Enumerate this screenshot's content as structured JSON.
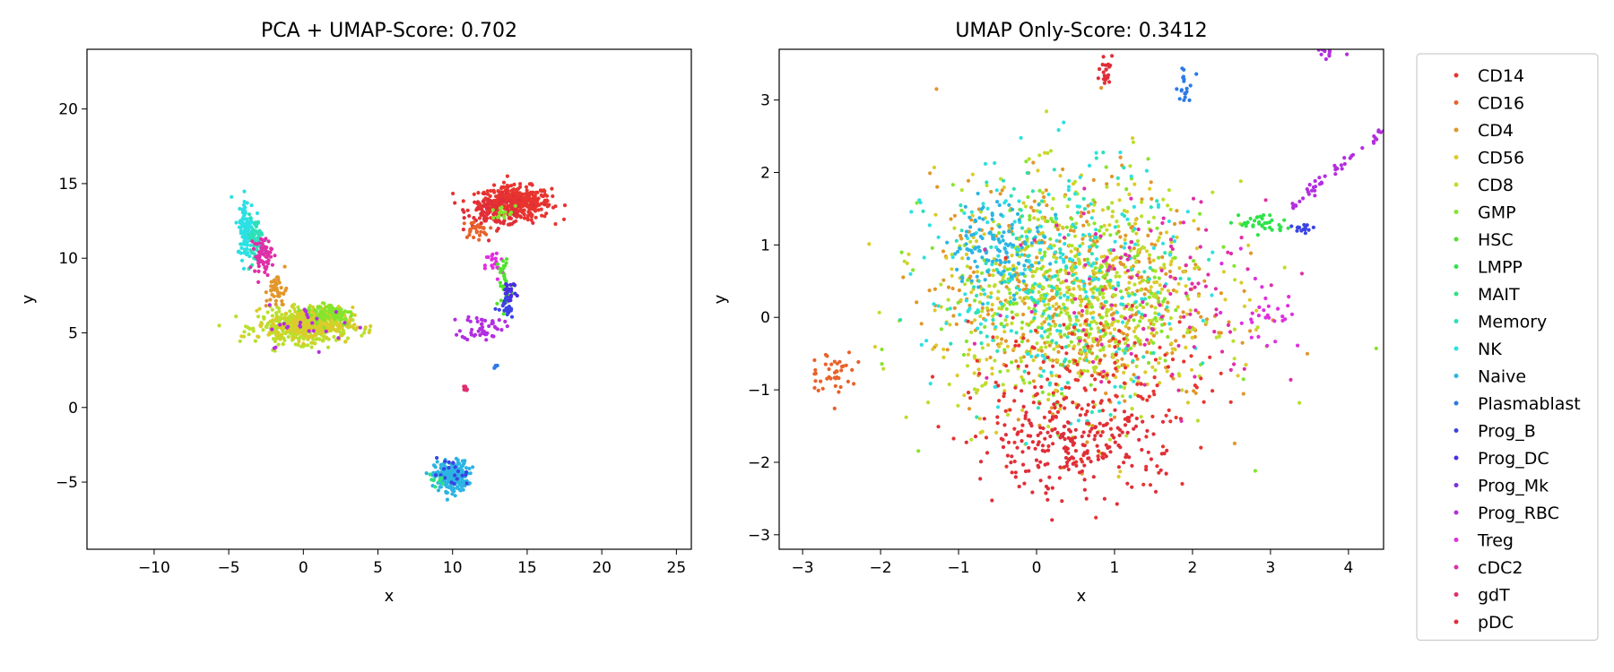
{
  "chart_data": [
    {
      "type": "scatter",
      "title": "PCA + UMAP-Score: 0.702",
      "xlabel": "x",
      "ylabel": "y",
      "xlim": [
        -14.5,
        26
      ],
      "ylim": [
        -9.5,
        24
      ],
      "xticks": [
        -10,
        -5,
        0,
        5,
        10,
        15,
        20,
        25
      ],
      "yticks": [
        -5,
        0,
        5,
        10,
        15,
        20
      ],
      "clusters": [
        {
          "label": "CD14",
          "cx": 14.2,
          "cy": 13.7,
          "sx": 1.2,
          "sy": 0.55,
          "n": 420
        },
        {
          "label": "pDC",
          "cx": 13.0,
          "cy": 13.2,
          "sx": 1.0,
          "sy": 0.5,
          "n": 120
        },
        {
          "label": "CD16",
          "cx": 11.5,
          "cy": 11.9,
          "sx": 0.45,
          "sy": 0.3,
          "n": 30
        },
        {
          "label": "GMP",
          "cx": 13.2,
          "cy": 13.0,
          "sx": 0.5,
          "sy": 0.25,
          "n": 15
        },
        {
          "label": "Treg",
          "cx": 12.8,
          "cy": 9.5,
          "sx": 0.3,
          "sy": 0.5,
          "n": 20
        },
        {
          "label": "HSC",
          "cx": 13.5,
          "cy": 8.2,
          "sx": 0.3,
          "sy": 1.3,
          "n": 35
        },
        {
          "label": "Prog_DC",
          "cx": 13.8,
          "cy": 7.8,
          "sx": 0.25,
          "sy": 0.5,
          "n": 30
        },
        {
          "label": "Prog_B",
          "cx": 13.6,
          "cy": 6.5,
          "sx": 0.25,
          "sy": 0.45,
          "n": 20
        },
        {
          "label": "Prog_RBC",
          "cx": 12.0,
          "cy": 5.4,
          "sx": 0.7,
          "sy": 0.45,
          "n": 50
        },
        {
          "label": "Plasmablast",
          "cx": 12.9,
          "cy": 2.7,
          "sx": 0.1,
          "sy": 0.1,
          "n": 6
        },
        {
          "label": "gdT",
          "cx": 10.8,
          "cy": 1.3,
          "sx": 0.15,
          "sy": 0.15,
          "n": 8
        },
        {
          "label": "Naive",
          "cx": 9.9,
          "cy": -4.6,
          "sx": 0.55,
          "sy": 0.5,
          "n": 250
        },
        {
          "label": "Prog_B",
          "cx": 9.9,
          "cy": -4.5,
          "sx": 0.6,
          "sy": 0.5,
          "n": 20
        },
        {
          "label": "MAIT",
          "cx": 9.0,
          "cy": -4.8,
          "sx": 0.3,
          "sy": 0.2,
          "n": 10
        },
        {
          "label": "CD8",
          "cx": 0.0,
          "cy": 5.4,
          "sx": 1.5,
          "sy": 0.55,
          "n": 420
        },
        {
          "label": "CD56",
          "cx": 0.5,
          "cy": 5.6,
          "sx": 1.4,
          "sy": 0.55,
          "n": 220
        },
        {
          "label": "GMP",
          "cx": 1.8,
          "cy": 6.3,
          "sx": 0.8,
          "sy": 0.4,
          "n": 80
        },
        {
          "label": "Prog_RBC",
          "cx": 0.6,
          "cy": 5.5,
          "sx": 1.5,
          "sy": 0.7,
          "n": 25
        },
        {
          "label": "NK",
          "cx": -3.8,
          "cy": 12.0,
          "sx": 0.3,
          "sy": 1.0,
          "n": 110
        },
        {
          "label": "Memory",
          "cx": -3.2,
          "cy": 11.2,
          "sx": 0.3,
          "sy": 0.8,
          "n": 60
        },
        {
          "label": "cDC2",
          "cx": -2.7,
          "cy": 10.2,
          "sx": 0.3,
          "sy": 0.6,
          "n": 60
        },
        {
          "label": "CD4",
          "cx": -1.8,
          "cy": 7.8,
          "sx": 0.35,
          "sy": 0.6,
          "n": 40
        }
      ]
    },
    {
      "type": "scatter",
      "title": "UMAP Only-Score: 0.3412",
      "xlabel": "x",
      "ylabel": "y",
      "xlim": [
        -3.3,
        4.45
      ],
      "ylim": [
        -3.2,
        3.7
      ],
      "xticks": [
        -3,
        -2,
        -1,
        0,
        1,
        2,
        3,
        4
      ],
      "yticks": [
        -3,
        -2,
        -1,
        0,
        1,
        2,
        3
      ],
      "clusters": [
        {
          "label": "CD4",
          "cx": 0.5,
          "cy": 0.3,
          "sx": 0.9,
          "sy": 0.8,
          "n": 420
        },
        {
          "label": "CD56",
          "cx": 0.5,
          "cy": 0.3,
          "sx": 0.9,
          "sy": 0.8,
          "n": 350
        },
        {
          "label": "CD8",
          "cx": 0.5,
          "cy": 0.2,
          "sx": 0.9,
          "sy": 0.8,
          "n": 350
        },
        {
          "label": "GMP",
          "cx": 0.5,
          "cy": 0.3,
          "sx": 0.9,
          "sy": 0.8,
          "n": 200
        },
        {
          "label": "NK",
          "cx": 0.2,
          "cy": 0.5,
          "sx": 0.8,
          "sy": 0.8,
          "n": 220
        },
        {
          "label": "Memory",
          "cx": 0.3,
          "cy": 0.5,
          "sx": 0.8,
          "sy": 0.8,
          "n": 150
        },
        {
          "label": "Naive",
          "cx": -0.5,
          "cy": 1.0,
          "sx": 0.3,
          "sy": 0.3,
          "n": 120
        },
        {
          "label": "CD14",
          "cx": 0.6,
          "cy": -1.0,
          "sx": 0.8,
          "sy": 0.6,
          "n": 180
        },
        {
          "label": "pDC",
          "cx": 0.4,
          "cy": -1.8,
          "sx": 0.6,
          "sy": 0.3,
          "n": 220
        },
        {
          "label": "cDC2",
          "cx": 1.5,
          "cy": 0.4,
          "sx": 0.9,
          "sy": 0.7,
          "n": 120
        },
        {
          "label": "Treg",
          "cx": 2.9,
          "cy": 0.1,
          "sx": 0.25,
          "sy": 0.3,
          "n": 30
        },
        {
          "label": "CD16",
          "cx": -2.6,
          "cy": -0.75,
          "sx": 0.15,
          "sy": 0.15,
          "n": 40
        },
        {
          "label": "pDC",
          "cx": 0.9,
          "cy": 3.4,
          "sx": 0.05,
          "sy": 0.12,
          "n": 25
        },
        {
          "label": "Plasmablast",
          "cx": 1.9,
          "cy": 3.15,
          "sx": 0.06,
          "sy": 0.12,
          "n": 20
        },
        {
          "label": "LMPP",
          "cx": 2.9,
          "cy": 1.3,
          "sx": 0.15,
          "sy": 0.07,
          "n": 35
        },
        {
          "label": "Prog_B",
          "cx": 3.4,
          "cy": 1.22,
          "sx": 0.1,
          "sy": 0.04,
          "n": 15
        },
        {
          "label": "Prog_RBC",
          "cx": 3.85,
          "cy": 2.05,
          "sx": 0.6,
          "sy": 0.55,
          "n": 45,
          "line": true
        },
        {
          "label": "Prog_RBC",
          "cx": 3.75,
          "cy": 3.65,
          "sx": 0.1,
          "sy": 0.05,
          "n": 10
        }
      ]
    }
  ],
  "legend": {
    "placement": "right",
    "items": [
      {
        "label": "CD14",
        "color": "#e8342f"
      },
      {
        "label": "CD16",
        "color": "#e8622a"
      },
      {
        "label": "CD4",
        "color": "#e2962a"
      },
      {
        "label": "CD56",
        "color": "#dccb2a"
      },
      {
        "label": "CD8",
        "color": "#b9e02c"
      },
      {
        "label": "GMP",
        "color": "#84e52c"
      },
      {
        "label": "HSC",
        "color": "#50e22e"
      },
      {
        "label": "LMPP",
        "color": "#2ee34a"
      },
      {
        "label": "MAIT",
        "color": "#2ee282"
      },
      {
        "label": "Memory",
        "color": "#2ee0b8"
      },
      {
        "label": "NK",
        "color": "#2ce0e3"
      },
      {
        "label": "Naive",
        "color": "#2cb4e3"
      },
      {
        "label": "Plasmablast",
        "color": "#2c7ae6"
      },
      {
        "label": "Prog_B",
        "color": "#3a44e3"
      },
      {
        "label": "Prog_DC",
        "color": "#4a2ee0"
      },
      {
        "label": "Prog_Mk",
        "color": "#7c2ee0"
      },
      {
        "label": "Prog_RBC",
        "color": "#b32ee0"
      },
      {
        "label": "Treg",
        "color": "#e02ee0"
      },
      {
        "label": "cDC2",
        "color": "#e02ea8"
      },
      {
        "label": "gdT",
        "color": "#e02e70"
      },
      {
        "label": "pDC",
        "color": "#e02e38"
      }
    ]
  }
}
